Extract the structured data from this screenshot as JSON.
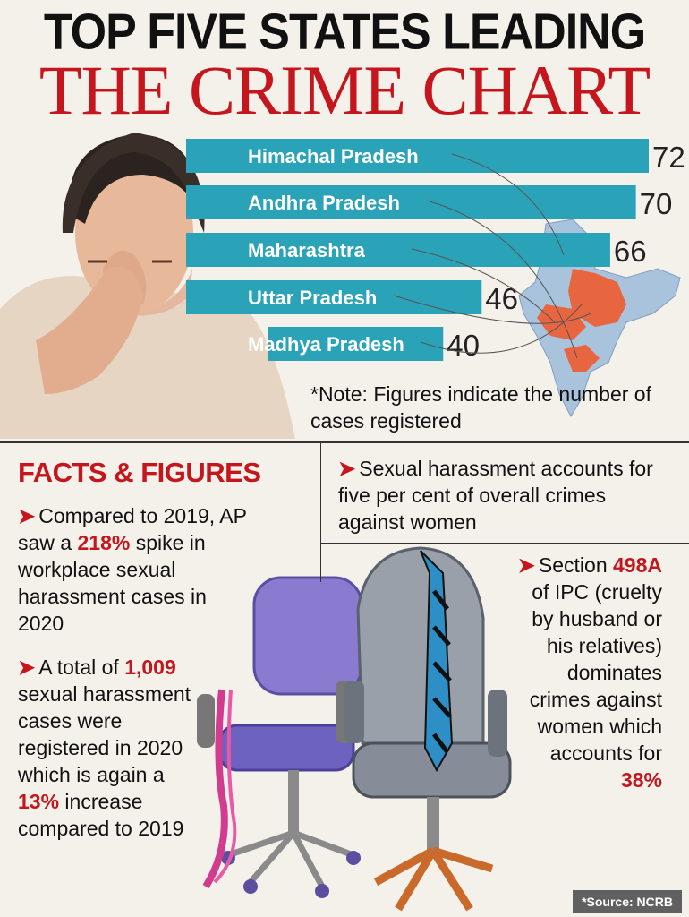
{
  "header": {
    "title_line1": "TOP FIVE STATES LEADING",
    "title_line2": "THE CRIME CHART"
  },
  "chart_data": {
    "type": "bar",
    "orientation": "horizontal",
    "categories": [
      "Himachal Pradesh",
      "Andhra Pradesh",
      "Maharashtra",
      "Uttar Pradesh",
      "Madhya Pradesh"
    ],
    "values": [
      72,
      70,
      66,
      46,
      40
    ],
    "bar_color": "#2aa2b8",
    "highlight_map_color": "#e8663f"
  },
  "note": "*Note: Figures indicate the number of cases registered",
  "facts": {
    "title": "FACTS & FIGURES",
    "fact1": {
      "pre": "Compared to 2019, AP saw a ",
      "highlight": "218%",
      "post": " spike in workplace sexual harassment cases in 2020"
    },
    "fact2": {
      "pre": "A total of ",
      "highlight": "1,009",
      "post": " sexual harassment cases were registered in 2020 which is again a ",
      "highlight2": "13%",
      "post2": " increase compared to 2019"
    },
    "fact3": {
      "text": "Sexual harassment accounts for five per cent of overall crimes against women"
    },
    "fact4": {
      "pre": "Section ",
      "highlight": "498A",
      "post": " of IPC (cruelty by husband or his relatives) dominates crimes against women which accounts for ",
      "highlight2": "38%"
    }
  },
  "source": "*Source: NCRB",
  "colors": {
    "accent_red": "#c5161d",
    "bar_teal": "#2aa2b8",
    "map_orange": "#e8663f",
    "map_blue": "#a9c3dd"
  }
}
